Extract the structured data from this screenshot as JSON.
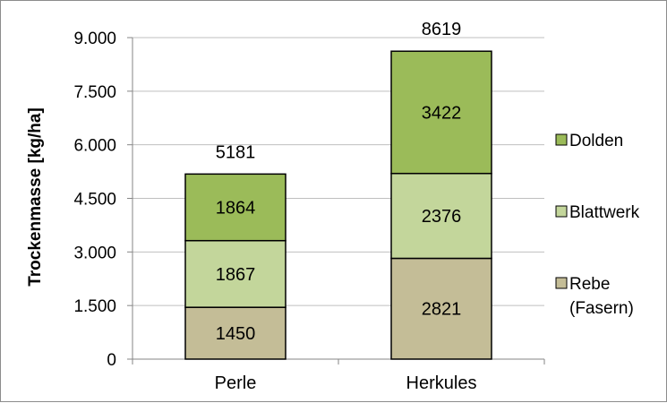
{
  "chart_data": {
    "type": "bar",
    "stacked": true,
    "title": "",
    "xlabel": "",
    "ylabel": "Trockenmasse [kg/ha]",
    "ylim": [
      0,
      9000
    ],
    "yticks": [
      0,
      1500,
      3000,
      4500,
      6000,
      7500,
      9000
    ],
    "ytick_labels": [
      "0",
      "1.500",
      "3.000",
      "4.500",
      "6.000",
      "7.500",
      "9.000"
    ],
    "grid": true,
    "legend_position": "right",
    "categories": [
      "Perle",
      "Herkules"
    ],
    "series": [
      {
        "name": "Rebe (Fasern)",
        "legend_lines": [
          "Rebe",
          "(Fasern)"
        ],
        "color": "#c4bd97",
        "values": [
          1450,
          2821
        ]
      },
      {
        "name": "Blattwerk",
        "legend_lines": [
          "Blattwerk"
        ],
        "color": "#c3d69b",
        "values": [
          1867,
          2376
        ]
      },
      {
        "name": "Dolden",
        "legend_lines": [
          "Dolden"
        ],
        "color": "#9bbb59",
        "values": [
          1864,
          3422
        ]
      }
    ],
    "totals": [
      5181,
      8619
    ]
  }
}
